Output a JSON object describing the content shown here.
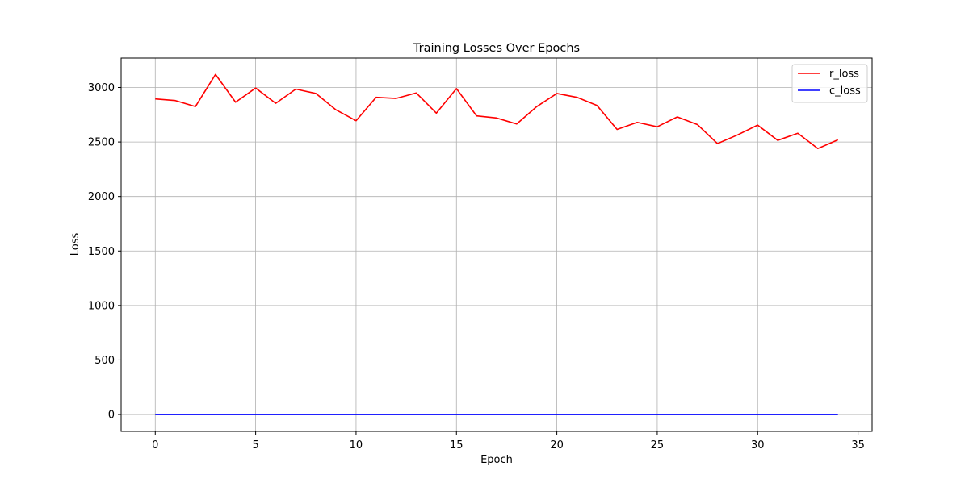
{
  "chart_data": {
    "type": "line",
    "title": "Training Losses Over Epochs",
    "xlabel": "Epoch",
    "ylabel": "Loss",
    "xlim": [
      -1.7,
      35.7
    ],
    "ylim": [
      -155,
      3270
    ],
    "xticks": [
      0,
      5,
      10,
      15,
      20,
      25,
      30,
      35
    ],
    "yticks": [
      0,
      500,
      1000,
      1500,
      2000,
      2500,
      3000
    ],
    "grid": true,
    "legend_position": "top-right",
    "x": [
      0,
      1,
      2,
      3,
      4,
      5,
      6,
      7,
      8,
      9,
      10,
      11,
      12,
      13,
      14,
      15,
      16,
      17,
      18,
      19,
      20,
      21,
      22,
      23,
      24,
      25,
      26,
      27,
      28,
      29,
      30,
      31,
      32,
      33,
      34
    ],
    "series": [
      {
        "name": "r_loss",
        "color": "#ff0000",
        "values": [
          2895,
          2880,
          2825,
          3120,
          2865,
          2995,
          2855,
          2985,
          2945,
          2795,
          2695,
          2910,
          2900,
          2950,
          2765,
          2990,
          2740,
          2720,
          2665,
          2825,
          2945,
          2910,
          2835,
          2615,
          2680,
          2640,
          2730,
          2660,
          2485,
          2565,
          2655,
          2515,
          2580,
          2440,
          2520
        ]
      },
      {
        "name": "c_loss",
        "color": "#0000ff",
        "values": [
          0,
          0,
          0,
          0,
          0,
          0,
          0,
          0,
          0,
          0,
          0,
          0,
          0,
          0,
          0,
          0,
          0,
          0,
          0,
          0,
          0,
          0,
          0,
          0,
          0,
          0,
          0,
          0,
          0,
          0,
          0,
          0,
          0,
          0,
          0
        ]
      }
    ]
  }
}
